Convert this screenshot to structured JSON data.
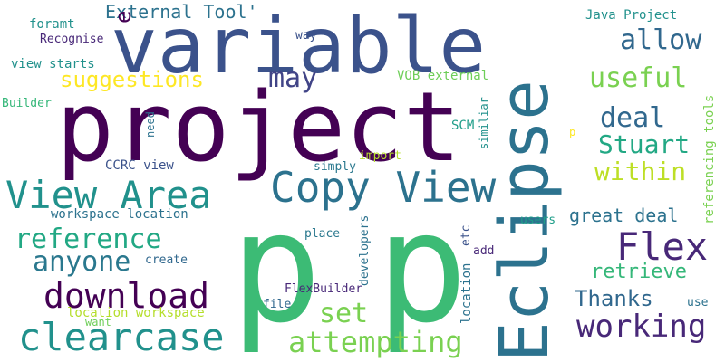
{
  "words": [
    {
      "text": "variable",
      "color": "#3b528b"
    },
    {
      "text": "project",
      "color": "#440154"
    },
    {
      "text": "p",
      "color": "#3cbb75"
    },
    {
      "text": "p",
      "color": "#3cbb75"
    },
    {
      "text": "Eclipse",
      "color": "#2c728e"
    },
    {
      "text": "Copy View",
      "color": "#2c728e"
    },
    {
      "text": "View Area",
      "color": "#21918c"
    },
    {
      "text": "Flex",
      "color": "#482878"
    },
    {
      "text": "clearcase",
      "color": "#21918c"
    },
    {
      "text": "download",
      "color": "#440154"
    },
    {
      "text": "working",
      "color": "#482878"
    },
    {
      "text": "attempting",
      "color": "#7ad151"
    },
    {
      "text": "reference",
      "color": "#22a884"
    },
    {
      "text": "anyone",
      "color": "#2a788e"
    },
    {
      "text": "set",
      "color": "#7ad151"
    },
    {
      "text": "allow",
      "color": "#31688e"
    },
    {
      "text": "useful",
      "color": "#7ad151"
    },
    {
      "text": "may",
      "color": "#414487"
    },
    {
      "text": "deal",
      "color": "#31688e"
    },
    {
      "text": "Stuart",
      "color": "#22a884"
    },
    {
      "text": "within",
      "color": "#bddf26"
    },
    {
      "text": "suggestions",
      "color": "#fde725"
    },
    {
      "text": "retrieve",
      "color": "#35b779"
    },
    {
      "text": "Thanks",
      "color": "#31688e"
    },
    {
      "text": "great deal",
      "color": "#2c728e"
    },
    {
      "text": "External Tool'",
      "color": "#2c728e"
    },
    {
      "text": "e",
      "color": "#440154"
    },
    {
      "text": "Java Project",
      "color": "#21918c"
    },
    {
      "text": "foramt",
      "color": "#21918c"
    },
    {
      "text": "Recognise",
      "color": "#482878"
    },
    {
      "text": "way",
      "color": "#3b528b"
    },
    {
      "text": "view starts",
      "color": "#21918c"
    },
    {
      "text": "VOB external",
      "color": "#6ece58"
    },
    {
      "text": "Builder",
      "color": "#35b779"
    },
    {
      "text": "need",
      "color": "#2c728e"
    },
    {
      "text": "similiar",
      "color": "#21918c"
    },
    {
      "text": "SCM",
      "color": "#1f9e89"
    },
    {
      "text": "p",
      "color": "#fde725"
    },
    {
      "text": "referencing tools",
      "color": "#7ad151"
    },
    {
      "text": "CCRC view",
      "color": "#3b528b"
    },
    {
      "text": "simply",
      "color": "#2a788e"
    },
    {
      "text": "import",
      "color": "#b5de2b"
    },
    {
      "text": "workspace location",
      "color": "#2c728e"
    },
    {
      "text": "users",
      "color": "#1f9e89"
    },
    {
      "text": "developers",
      "color": "#2c728e"
    },
    {
      "text": "etc",
      "color": "#3b528b"
    },
    {
      "text": "place",
      "color": "#2a788e"
    },
    {
      "text": "add",
      "color": "#482878"
    },
    {
      "text": "create",
      "color": "#31688e"
    },
    {
      "text": "location",
      "color": "#2c728e"
    },
    {
      "text": "FlexBuilder",
      "color": "#482878"
    },
    {
      "text": "file",
      "color": "#31688e"
    },
    {
      "text": "location workspace",
      "color": "#b5de2b"
    },
    {
      "text": "want",
      "color": "#6ece58"
    },
    {
      "text": "use",
      "color": "#2c728e"
    }
  ]
}
